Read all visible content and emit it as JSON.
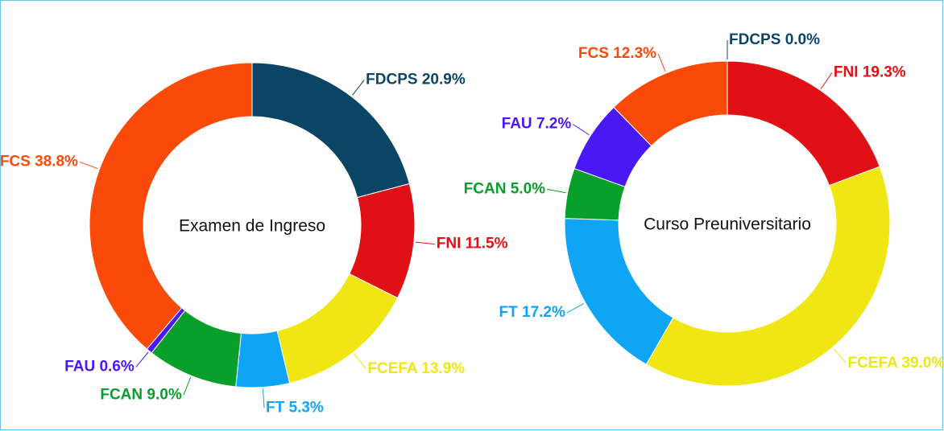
{
  "chart_data": [
    {
      "type": "donut",
      "title": "Examen de Ingreso",
      "categories": [
        "FDCPS",
        "FNI",
        "FCEFA",
        "FT",
        "FCAN",
        "FAU",
        "FCS"
      ],
      "values": [
        20.9,
        11.5,
        13.9,
        5.3,
        9.0,
        0.6,
        38.8
      ],
      "value_labels": [
        "20.9%",
        "11.5%",
        "13.9%",
        "5.3%",
        "9.0%",
        "0.6%",
        "38.8%"
      ],
      "colors": [
        "#0b4566",
        "#e01016",
        "#f0e613",
        "#0ea5f5",
        "#08a02a",
        "#4a18f5",
        "#fa4a0a"
      ]
    },
    {
      "type": "donut",
      "title": "Curso Preuniversitario",
      "categories": [
        "FDCPS",
        "FNI",
        "FCEFA",
        "FT",
        "FCAN",
        "FAU",
        "FCS"
      ],
      "values": [
        0.0,
        19.3,
        39.0,
        17.2,
        5.0,
        7.2,
        12.3
      ],
      "value_labels": [
        "0.0%",
        "19.3%",
        "39.0%",
        "17.2%",
        "5.0%",
        "7.2%",
        "12.3%"
      ],
      "colors": [
        "#0b4566",
        "#e01016",
        "#f0e613",
        "#0ea5f5",
        "#08a02a",
        "#4a18f5",
        "#fa4a0a"
      ]
    }
  ]
}
